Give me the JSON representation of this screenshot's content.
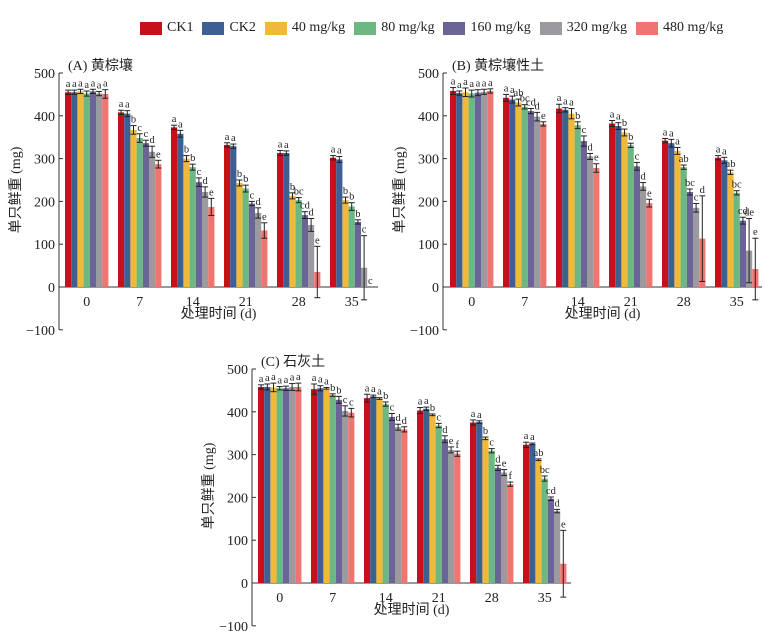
{
  "legend": [
    {
      "label": "CK1",
      "color": "#c8101b"
    },
    {
      "label": "CK2",
      "color": "#3d5f94"
    },
    {
      "label": "40 mg/kg",
      "color": "#f0b93a"
    },
    {
      "label": "80 mg/kg",
      "color": "#6cb883"
    },
    {
      "label": "160 mg/kg",
      "color": "#6b6497"
    },
    {
      "label": "320 mg/kg",
      "color": "#9c9a9f"
    },
    {
      "label": "480 mg/kg",
      "color": "#ee7570"
    }
  ],
  "chart_data": [
    {
      "type": "bar",
      "title": "(A) 黄棕壤",
      "xlabel": "处理时间 (d)",
      "ylabel": "单只鲜重 (mg)",
      "ylim": [
        -100,
        500
      ],
      "yticks": [
        "500",
        "400",
        "300",
        "200",
        "100",
        "0",
        "−100"
      ],
      "ytick_values": [
        500,
        400,
        300,
        200,
        100,
        0,
        -100
      ],
      "categories": [
        "0",
        "7",
        "14",
        "21",
        "28",
        "35"
      ],
      "series": [
        {
          "name": "CK1",
          "values": [
            455,
            408,
            373,
            332,
            313,
            302
          ],
          "errors": [
            5,
            5,
            5,
            5,
            6,
            5
          ],
          "letters": [
            "a",
            "a",
            "a",
            "a",
            "a",
            "a"
          ]
        },
        {
          "name": "CK2",
          "values": [
            455,
            405,
            358,
            329,
            313,
            298
          ],
          "errors": [
            5,
            7,
            8,
            5,
            5,
            7
          ],
          "letters": [
            "a",
            "a",
            "a",
            "a",
            "a",
            "a"
          ]
        },
        {
          "name": "40 mg/kg",
          "values": [
            457,
            367,
            300,
            243,
            213,
            203
          ],
          "errors": [
            5,
            10,
            7,
            7,
            7,
            7
          ],
          "letters": [
            "a",
            "b",
            "b",
            "b",
            "b",
            "b"
          ]
        },
        {
          "name": "80 mg/kg",
          "values": [
            452,
            348,
            280,
            230,
            203,
            188
          ],
          "errors": [
            6,
            10,
            7,
            8,
            6,
            9
          ],
          "letters": [
            "a",
            "c",
            "b",
            "b",
            "bc",
            "b"
          ]
        },
        {
          "name": "160 mg/kg",
          "values": [
            457,
            336,
            245,
            195,
            168,
            152
          ],
          "errors": [
            5,
            7,
            10,
            5,
            8,
            5
          ],
          "letters": [
            "a",
            "c",
            "c",
            "c",
            "cd",
            "b"
          ]
        },
        {
          "name": "320 mg/kg",
          "values": [
            452,
            316,
            222,
            173,
            145,
            45
          ],
          "errors": [
            5,
            13,
            12,
            12,
            15,
            75
          ],
          "letters": [
            "a",
            "d",
            "d",
            "d",
            "d",
            "c"
          ]
        },
        {
          "name": "480 mg/kg",
          "values": [
            451,
            287,
            187,
            132,
            35,
            0
          ],
          "errors": [
            10,
            9,
            20,
            18,
            60,
            0
          ],
          "letters": [
            "a",
            "e",
            "e",
            "e",
            "e",
            "c"
          ]
        }
      ]
    },
    {
      "type": "bar",
      "title": "(B) 黄棕壤性土",
      "xlabel": "处理时间 (d)",
      "ylabel": "单只鲜重 (mg)",
      "ylim": [
        -100,
        500
      ],
      "yticks": [
        "500",
        "400",
        "300",
        "200",
        "100",
        "0",
        "−100"
      ],
      "ytick_values": [
        500,
        400,
        300,
        200,
        100,
        0,
        -100
      ],
      "categories": [
        "0",
        "7",
        "14",
        "21",
        "28",
        "35"
      ],
      "series": [
        {
          "name": "CK1",
          "values": [
            458,
            442,
            417,
            382,
            342,
            302
          ],
          "errors": [
            8,
            8,
            10,
            7,
            5,
            5
          ],
          "letters": [
            "a",
            "a",
            "a",
            "a",
            "a",
            "a"
          ]
        },
        {
          "name": "CK2",
          "values": [
            453,
            438,
            414,
            376,
            336,
            296
          ],
          "errors": [
            5,
            8,
            5,
            8,
            9,
            7
          ],
          "letters": [
            "a",
            "a",
            "a",
            "a",
            "a",
            "a"
          ]
        },
        {
          "name": "40 mg/kg",
          "values": [
            455,
            431,
            405,
            361,
            318,
            268
          ],
          "errors": [
            10,
            8,
            12,
            8,
            8,
            5
          ],
          "letters": [
            "a",
            "ab",
            "a",
            "b",
            "a",
            "ab"
          ]
        },
        {
          "name": "80 mg/kg",
          "values": [
            452,
            421,
            378,
            331,
            280,
            220
          ],
          "errors": [
            8,
            5,
            8,
            5,
            5,
            5
          ],
          "letters": [
            "a",
            "bc",
            "b",
            "b",
            "ab",
            "bc"
          ]
        },
        {
          "name": "160 mg/kg",
          "values": [
            454,
            411,
            341,
            282,
            222,
            155
          ],
          "errors": [
            7,
            6,
            12,
            9,
            7,
            8
          ],
          "letters": [
            "a",
            "cd",
            "c",
            "c",
            "bc",
            "cd"
          ]
        },
        {
          "name": "320 mg/kg",
          "values": [
            456,
            398,
            305,
            235,
            185,
            85
          ],
          "errors": [
            6,
            10,
            7,
            9,
            10,
            75
          ],
          "letters": [
            "a",
            "d",
            "d",
            "d",
            "c",
            "de"
          ]
        },
        {
          "name": "480 mg/kg",
          "values": [
            458,
            381,
            278,
            196,
            113,
            42
          ],
          "errors": [
            5,
            5,
            10,
            9,
            100,
            72
          ],
          "letters": [
            "a",
            "e",
            "e",
            "e",
            "d",
            "e"
          ]
        }
      ]
    },
    {
      "type": "bar",
      "title": "(C) 石灰土",
      "xlabel": "处理时间 (d)",
      "ylabel": "单只鲜重 (mg)",
      "ylim": [
        -100,
        500
      ],
      "yticks": [
        "500",
        "400",
        "300",
        "200",
        "100",
        "0",
        "−100"
      ],
      "ytick_values": [
        500,
        400,
        300,
        200,
        100,
        0,
        -100
      ],
      "categories": [
        "0",
        "7",
        "14",
        "21",
        "28",
        "35"
      ],
      "series": [
        {
          "name": "CK1",
          "values": [
            458,
            453,
            432,
            403,
            375,
            323
          ],
          "errors": [
            5,
            12,
            9,
            7,
            6,
            6
          ],
          "letters": [
            "a",
            "a",
            "a",
            "a",
            "a",
            "a"
          ]
        },
        {
          "name": "CK2",
          "values": [
            458,
            455,
            436,
            407,
            376,
            325
          ],
          "errors": [
            7,
            6,
            3,
            4,
            3,
            2
          ],
          "letters": [
            "a",
            "a",
            "a",
            "a",
            "a",
            "a"
          ]
        },
        {
          "name": "40 mg/kg",
          "values": [
            457,
            455,
            431,
            393,
            338,
            288
          ],
          "errors": [
            10,
            2,
            2,
            2,
            3,
            2
          ],
          "letters": [
            "a",
            "a",
            "a",
            "b",
            "b",
            "ab"
          ]
        },
        {
          "name": "80 mg/kg",
          "values": [
            455,
            439,
            418,
            368,
            309,
            244
          ],
          "errors": [
            4,
            3,
            5,
            5,
            5,
            6
          ],
          "letters": [
            "a",
            "b",
            "b",
            "c",
            "c",
            "bc"
          ]
        },
        {
          "name": "160 mg/kg",
          "values": [
            455,
            428,
            388,
            336,
            269,
            197
          ],
          "errors": [
            5,
            8,
            8,
            8,
            6,
            4
          ],
          "letters": [
            "a",
            "b",
            "c",
            "d",
            "d",
            "cd"
          ]
        },
        {
          "name": "320 mg/kg",
          "values": [
            458,
            402,
            364,
            311,
            258,
            168
          ],
          "errors": [
            8,
            12,
            7,
            7,
            7,
            4
          ],
          "letters": [
            "a",
            "c",
            "d",
            "e",
            "e",
            "d"
          ]
        },
        {
          "name": "480 mg/kg",
          "values": [
            458,
            398,
            359,
            302,
            231,
            45
          ],
          "errors": [
            9,
            10,
            6,
            6,
            5,
            78
          ],
          "letters": [
            "a",
            "c",
            "d",
            "f",
            "f",
            "e"
          ]
        }
      ]
    }
  ]
}
